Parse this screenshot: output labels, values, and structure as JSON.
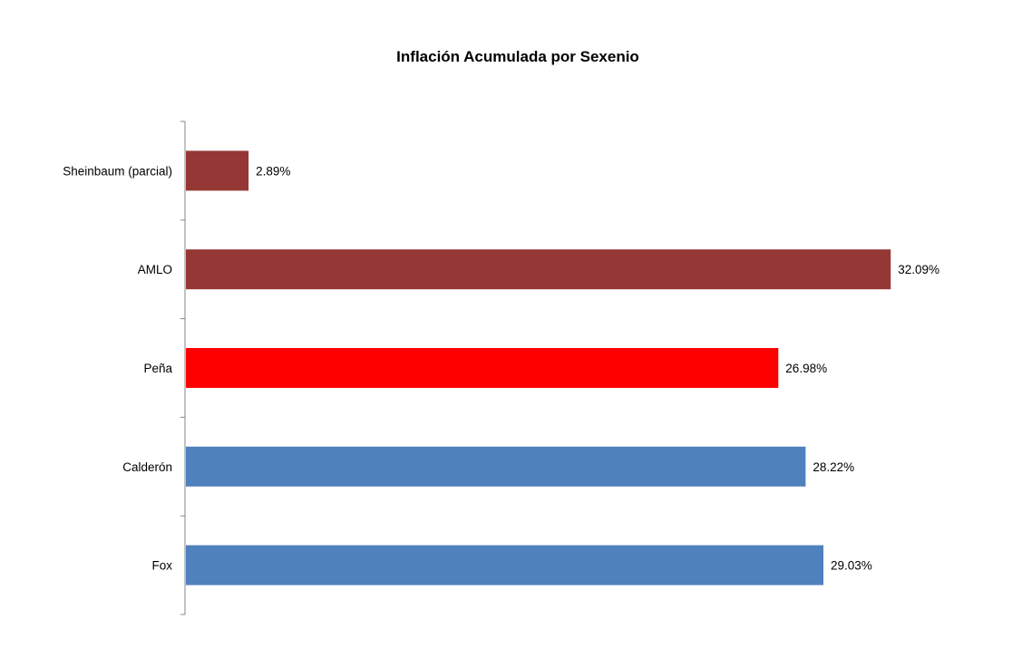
{
  "chart_data": {
    "type": "bar",
    "orientation": "horizontal",
    "title": "Inflación Acumulada por Sexenio",
    "xlabel": "",
    "ylabel": "",
    "categories": [
      "Fox",
      "Calderón",
      "Peña",
      "AMLO",
      "Sheinbaum (parcial)"
    ],
    "values": [
      29.03,
      28.22,
      26.98,
      32.09,
      2.89
    ],
    "data_labels": [
      "29.03%",
      "28.22%",
      "26.98%",
      "32.09%",
      "2.89%"
    ],
    "bar_colors": [
      "#4F81BD",
      "#4F81BD",
      "#FF0000",
      "#953735",
      "#953735"
    ],
    "xlim": [
      0,
      33.4
    ],
    "grid": false,
    "legend": "none",
    "axis_color": "#868686"
  }
}
